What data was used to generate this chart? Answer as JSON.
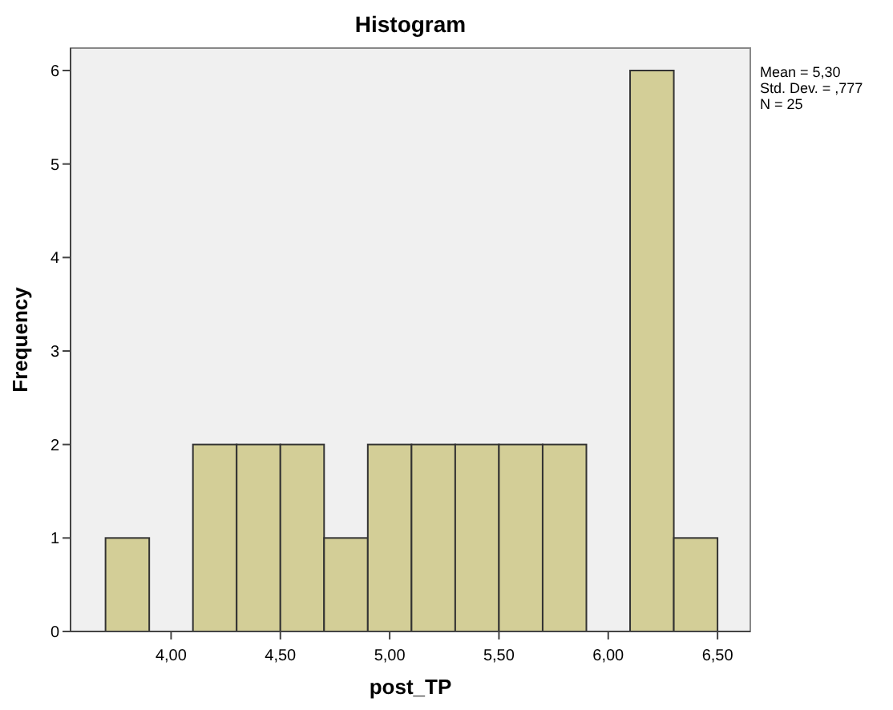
{
  "chart_data": {
    "type": "histogram",
    "title": "Histogram",
    "xlabel": "post_TP",
    "ylabel": "Frequency",
    "bins": [
      3.7,
      3.9,
      4.1,
      4.3,
      4.5,
      4.7,
      4.9,
      5.1,
      5.3,
      5.5,
      5.7,
      5.9,
      6.1,
      6.3,
      6.5
    ],
    "values": [
      1,
      0,
      2,
      2,
      2,
      1,
      2,
      2,
      2,
      2,
      2,
      0,
      6,
      1
    ],
    "color": "#d3ce97",
    "xlim": [
      3.54,
      6.65
    ],
    "ylim": [
      0,
      6.24
    ],
    "xticks": [
      {
        "value": 4,
        "label": "4,00"
      },
      {
        "value": 4.5,
        "label": "4,50"
      },
      {
        "value": 5,
        "label": "5,00"
      },
      {
        "value": 5.5,
        "label": "5,50"
      },
      {
        "value": 6,
        "label": "6,00"
      },
      {
        "value": 6.5,
        "label": "6,50"
      }
    ],
    "yticks": [
      0,
      1,
      2,
      3,
      4,
      5,
      6
    ],
    "annotations": [
      "Mean = 5,30",
      "Std. Dev. = ,777",
      "N = 25"
    ]
  }
}
